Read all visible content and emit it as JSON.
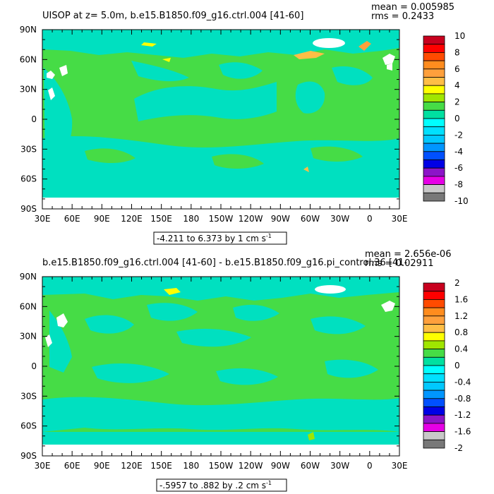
{
  "chart_data": [
    {
      "type": "heatmap",
      "title": "UISOP at z=    5.0m, b.e15.B1850.f09_g16.ctrl.004 [41-60]",
      "stats": {
        "mean": "mean = 0.005985",
        "rms": "rms = 0.2433"
      },
      "contour_info": "-4.211 to 6.373 by 1 cm s",
      "contour_info_sup": "-1",
      "x_ticks": [
        "30E",
        "60E",
        "90E",
        "120E",
        "150E",
        "180",
        "150W",
        "120W",
        "90W",
        "60W",
        "30W",
        "0",
        "30E"
      ],
      "y_ticks": [
        "90N",
        "60N",
        "30N",
        "0",
        "30S",
        "60S",
        "90S"
      ],
      "xlim": [
        30,
        390
      ],
      "ylim": [
        -90,
        90
      ],
      "colorbar": {
        "labels": [
          "10",
          "8",
          "6",
          "4",
          "2",
          "0",
          "-2",
          "-4",
          "-6",
          "-8",
          "-10"
        ],
        "levels": [
          10,
          9,
          8,
          7,
          6,
          5,
          4,
          3,
          2,
          1,
          0,
          -1,
          -2,
          -3,
          -4,
          -5,
          -6,
          -7,
          -8,
          -9,
          -10
        ]
      },
      "field": {
        "dominant_levels": [
          "-1 to 0",
          "0 to 1"
        ],
        "min": -4.211,
        "max": 6.373
      }
    },
    {
      "type": "heatmap",
      "title": "b.e15.B1850.f09_g16.ctrl.004 [41-60] - b.e15.B1850.f09_g16.pi_control.36 [41-",
      "stats": {
        "mean": "mean = 2.656e-06",
        "rms": "rms = 0.02911"
      },
      "contour_info": "-.5957 to .882 by .2 cm s",
      "contour_info_sup": "-1",
      "x_ticks": [
        "30E",
        "60E",
        "90E",
        "120E",
        "150E",
        "180",
        "150W",
        "120W",
        "90W",
        "60W",
        "30W",
        "0",
        "30E"
      ],
      "y_ticks": [
        "90N",
        "60N",
        "30N",
        "0",
        "30S",
        "60S",
        "90S"
      ],
      "xlim": [
        30,
        390
      ],
      "ylim": [
        -90,
        90
      ],
      "colorbar": {
        "labels": [
          "2",
          "1.6",
          "1.2",
          "0.8",
          "0.4",
          "0",
          "-0.4",
          "-0.8",
          "-1.2",
          "-1.6",
          "-2"
        ],
        "levels": [
          2,
          1.8,
          1.6,
          1.4,
          1.2,
          1,
          0.8,
          0.6,
          0.4,
          0.2,
          0,
          -0.2,
          -0.4,
          -0.6,
          -0.8,
          -1,
          -1.2,
          -1.4,
          -1.6,
          -1.8,
          -2
        ]
      },
      "field": {
        "dominant_levels": [
          "-0.2 to 0",
          "0 to 0.2"
        ],
        "min": -0.5957,
        "max": 0.882
      }
    }
  ],
  "colors": {
    "palette": [
      "#c8001e",
      "#ff0000",
      "#ff4b00",
      "#ff8c1e",
      "#ffa03c",
      "#ffbe46",
      "#ffff00",
      "#a0e600",
      "#46dc46",
      "#00e0a0",
      "#00ffff",
      "#00e0ff",
      "#00c8ff",
      "#0096ff",
      "#0050ff",
      "#0000e6",
      "#8c14c8",
      "#e600e6",
      "#c8c8c8",
      "#787878"
    ],
    "land": "#ffffff",
    "green": "#46dc46",
    "cyan": "#00e0c0"
  }
}
